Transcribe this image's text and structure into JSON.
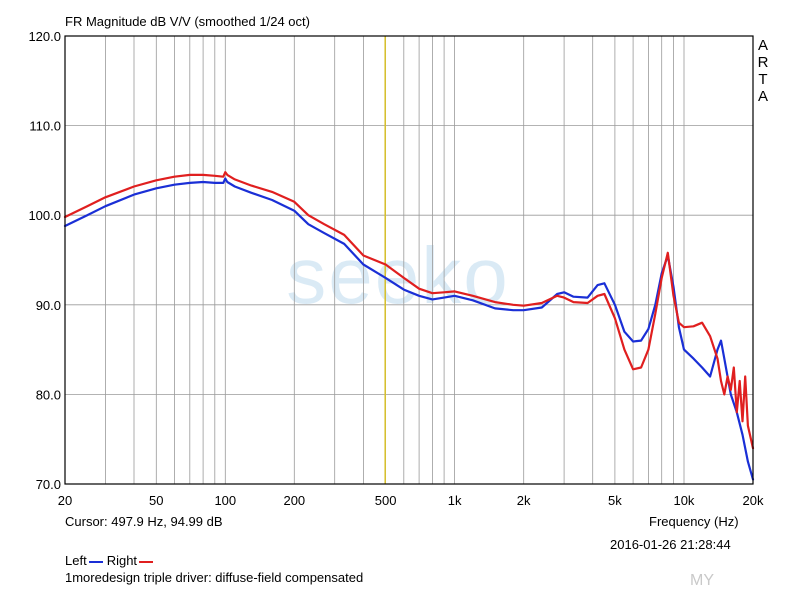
{
  "header": {
    "title": "FR Magnitude dB V/V (smoothed 1/24 oct)",
    "arta_letters": [
      "A",
      "R",
      "T",
      "A"
    ]
  },
  "info": {
    "cursor": "Cursor: 497.9 Hz, 94.99 dB",
    "freq_label": "Frequency (Hz)",
    "timestamp": "2016-01-26  21:28:44",
    "legend_left": "Left",
    "legend_right": "Right",
    "caption": "1moredesign triple driver: diffuse-field compensated"
  },
  "watermark": {
    "text": "seeko",
    "corner": "MY"
  },
  "colors": {
    "left": "#1a2fd6",
    "right": "#e01f1f",
    "cursor": "#d8c12a",
    "grid": "#9a9a9a",
    "frame": "#000000"
  },
  "chart_data": {
    "type": "line",
    "title": "FR Magnitude dB V/V (smoothed 1/24 oct)",
    "xlabel": "Frequency (Hz)",
    "ylabel": "",
    "x_scale": "log",
    "xlim": [
      20,
      20000
    ],
    "ylim": [
      70,
      120
    ],
    "x_ticks": [
      20,
      50,
      100,
      200,
      500,
      1000,
      2000,
      5000,
      10000,
      20000
    ],
    "x_tick_labels": [
      "20",
      "50",
      "100",
      "200",
      "500",
      "1k",
      "2k",
      "5k",
      "10k",
      "20k"
    ],
    "y_ticks": [
      70,
      80,
      90,
      100,
      110,
      120
    ],
    "y_tick_labels": [
      "70.0",
      "80.0",
      "90.0",
      "100.0",
      "110.0",
      "120.0"
    ],
    "grid": true,
    "cursor_x": 497.9,
    "series": [
      {
        "name": "Left",
        "x": [
          20,
          25,
          30,
          40,
          50,
          60,
          70,
          80,
          90,
          98,
          100,
          102,
          110,
          130,
          160,
          200,
          230,
          270,
          330,
          400,
          500,
          600,
          700,
          800,
          900,
          1000,
          1200,
          1500,
          1800,
          2000,
          2400,
          2800,
          3000,
          3300,
          3800,
          4200,
          4500,
          5000,
          5500,
          6000,
          6500,
          7000,
          7500,
          8000,
          8500,
          9000,
          9500,
          10000,
          11000,
          12000,
          13000,
          14000,
          14500,
          15000,
          16000,
          17000,
          18000,
          19000,
          20000
        ],
        "y": [
          98.8,
          100.0,
          101.0,
          102.3,
          103.0,
          103.4,
          103.6,
          103.7,
          103.6,
          103.6,
          104.1,
          103.7,
          103.2,
          102.5,
          101.7,
          100.5,
          99.0,
          98.0,
          96.8,
          94.5,
          93.0,
          91.7,
          91.0,
          90.6,
          90.8,
          91.0,
          90.5,
          89.6,
          89.4,
          89.4,
          89.7,
          91.2,
          91.4,
          90.9,
          90.8,
          92.2,
          92.4,
          90.0,
          87.0,
          85.9,
          86.0,
          87.3,
          90.0,
          93.5,
          95.5,
          92.0,
          87.5,
          85.0,
          84.0,
          83.0,
          82.0,
          85.0,
          86.0,
          84.0,
          80.0,
          78.0,
          75.5,
          72.5,
          70.5
        ]
      },
      {
        "name": "Right",
        "x": [
          20,
          25,
          30,
          40,
          50,
          60,
          70,
          80,
          90,
          98,
          100,
          102,
          110,
          130,
          160,
          200,
          230,
          270,
          330,
          400,
          500,
          600,
          700,
          800,
          900,
          1000,
          1200,
          1500,
          1800,
          2000,
          2400,
          2800,
          3000,
          3300,
          3800,
          4200,
          4500,
          5000,
          5500,
          6000,
          6500,
          7000,
          7500,
          8000,
          8500,
          9000,
          9500,
          10000,
          11000,
          12000,
          13000,
          14000,
          14500,
          15000,
          15500,
          16000,
          16500,
          17000,
          17500,
          18000,
          18500,
          19000,
          20000
        ],
        "y": [
          99.8,
          101.0,
          102.0,
          103.2,
          103.9,
          104.3,
          104.5,
          104.5,
          104.4,
          104.3,
          104.8,
          104.5,
          104.0,
          103.3,
          102.6,
          101.5,
          100.0,
          99.0,
          97.8,
          95.5,
          94.5,
          93.0,
          91.8,
          91.3,
          91.4,
          91.5,
          91.0,
          90.3,
          90.0,
          89.9,
          90.2,
          91.0,
          90.8,
          90.3,
          90.2,
          91.0,
          91.2,
          88.5,
          85.0,
          82.8,
          83.0,
          85.0,
          89.0,
          93.0,
          95.8,
          91.0,
          88.0,
          87.5,
          87.6,
          88.0,
          86.5,
          84.0,
          81.5,
          80.0,
          82.0,
          80.5,
          83.0,
          78.0,
          81.5,
          77.0,
          82.0,
          76.5,
          74.0
        ]
      }
    ]
  }
}
